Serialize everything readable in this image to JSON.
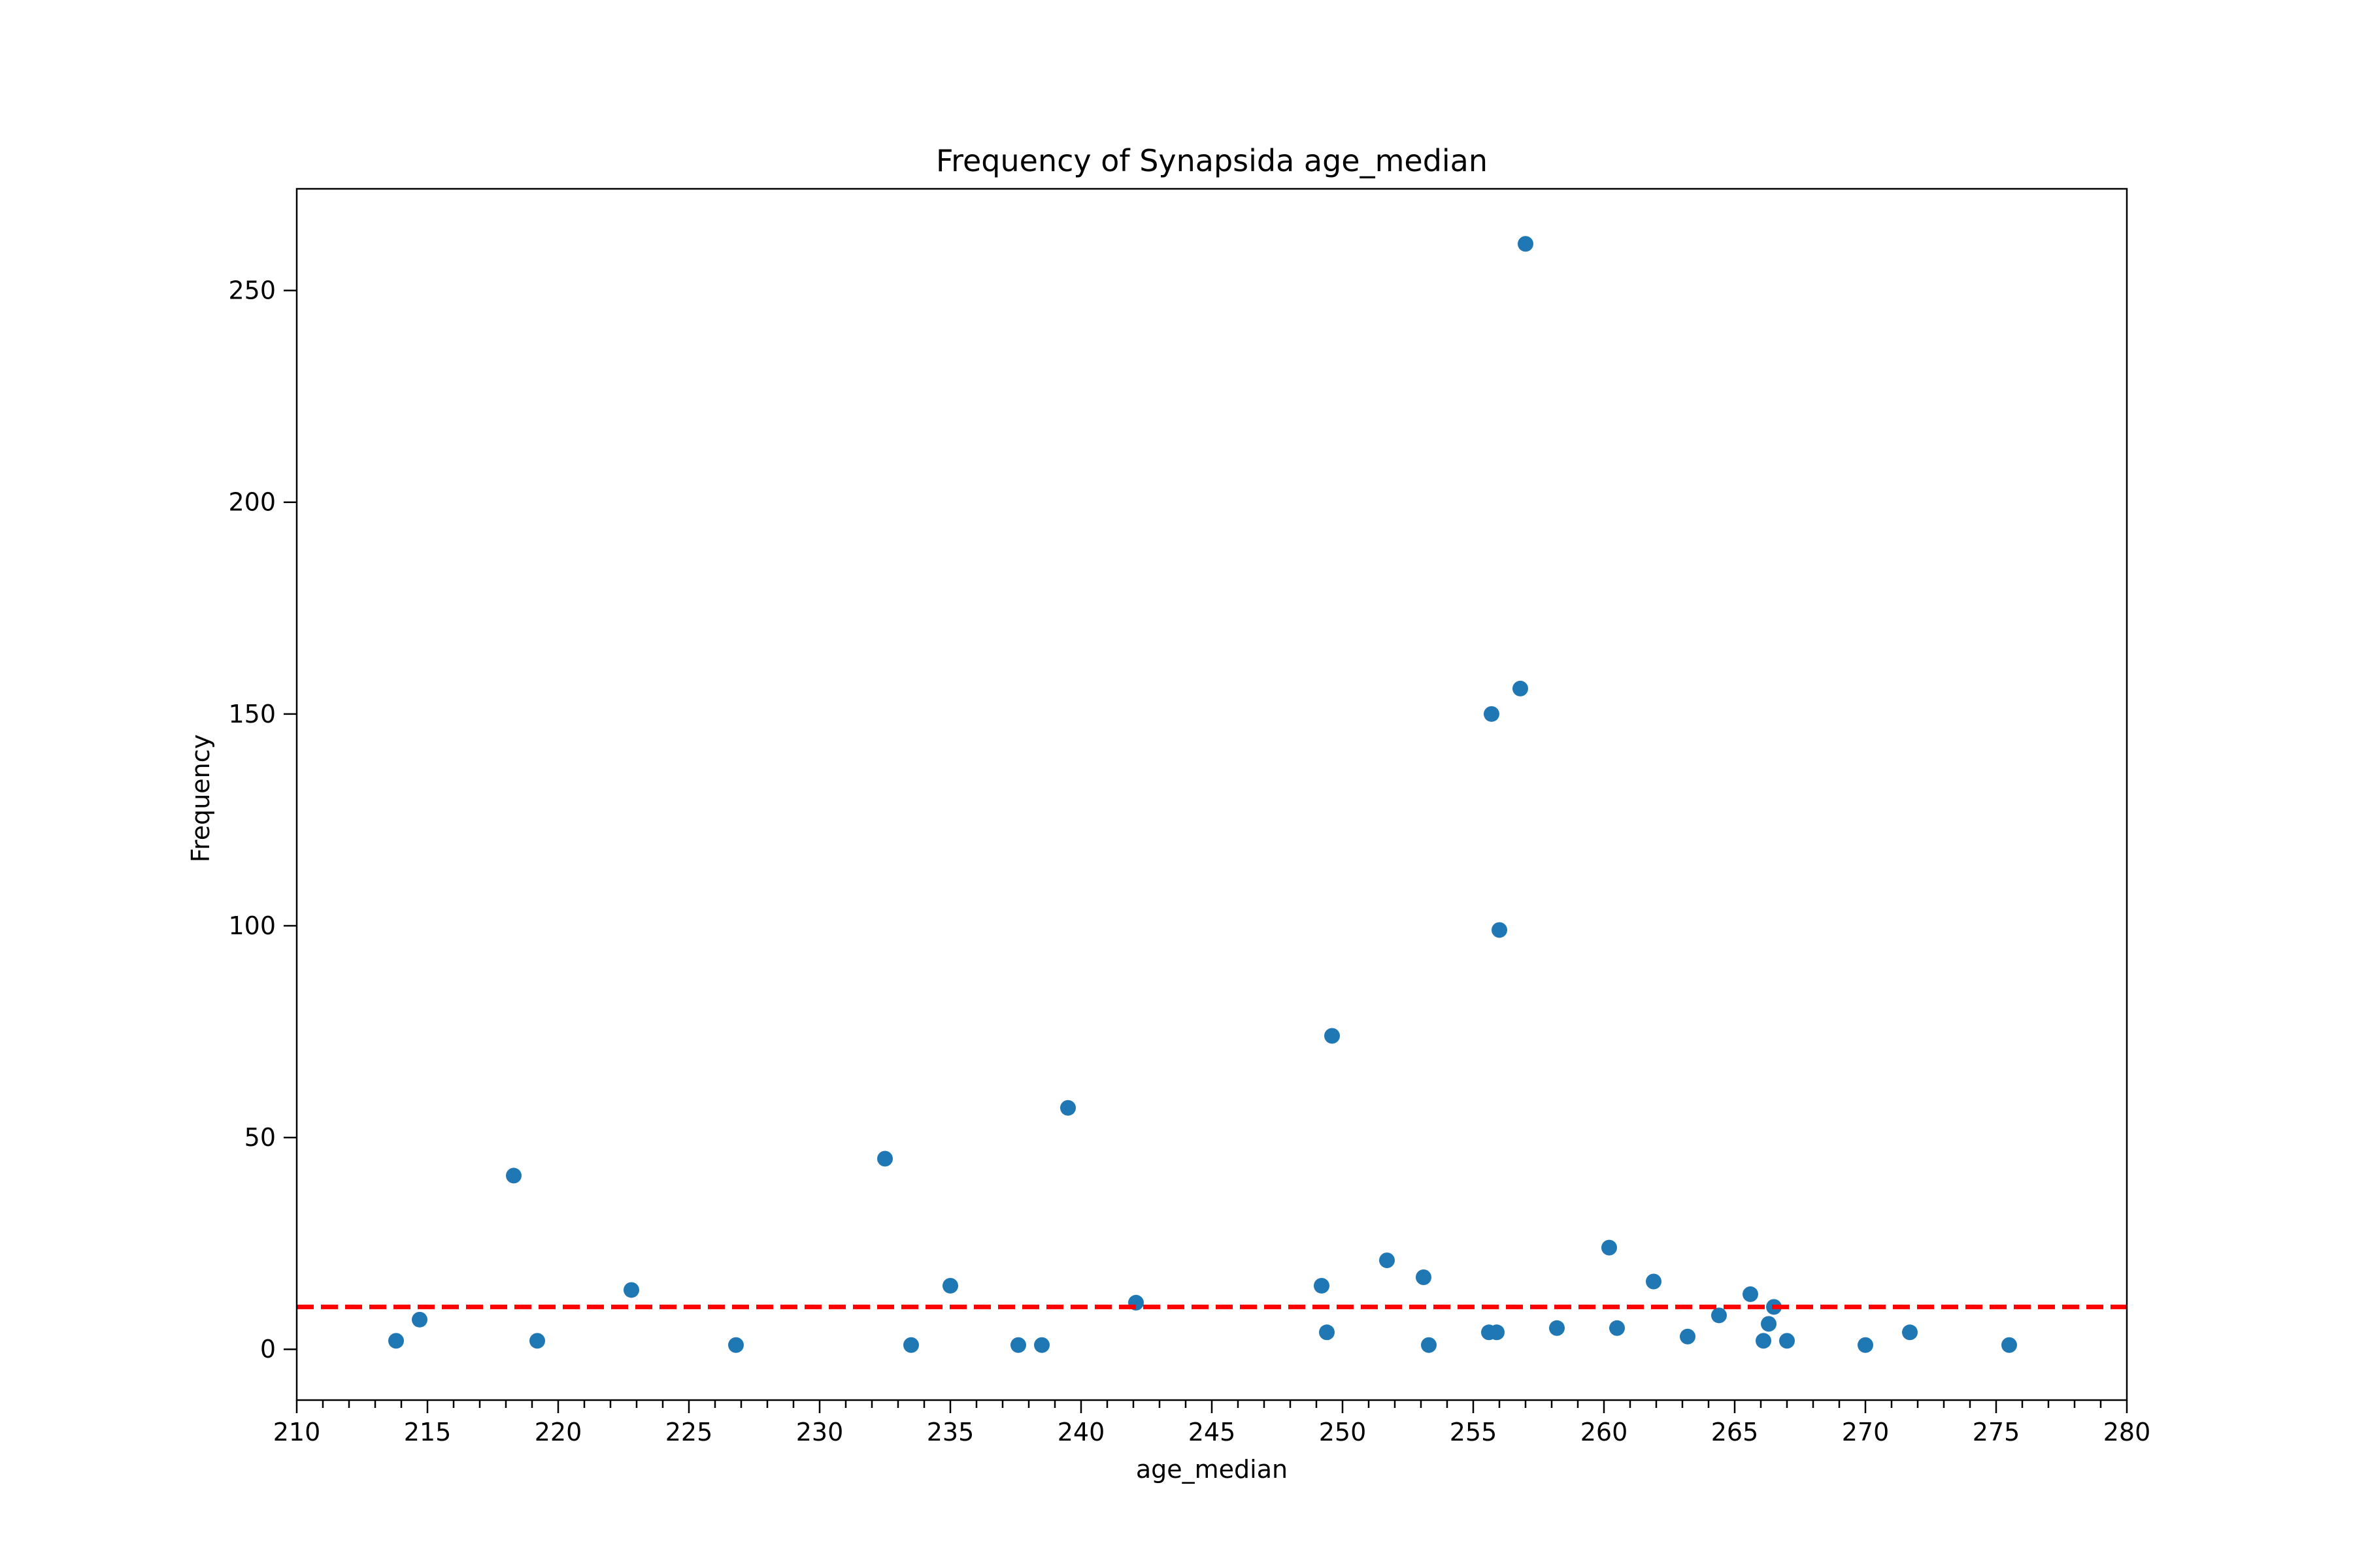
{
  "chart_data": {
    "type": "scatter",
    "title": "Frequency of Synapsida age_median",
    "xlabel": "age_median",
    "ylabel": "Frequency",
    "xlim": [
      210,
      280
    ],
    "ylim": [
      -12,
      274
    ],
    "x_major_ticks": [
      210,
      215,
      220,
      225,
      230,
      235,
      240,
      245,
      250,
      255,
      260,
      265,
      270,
      275,
      280
    ],
    "x_minor_tick_step": 1,
    "y_ticks": [
      0,
      50,
      100,
      150,
      200,
      250
    ],
    "grid": false,
    "marker_color": "#1f77b4",
    "threshold": {
      "y": 10,
      "color": "#ff0000",
      "style": "dashed"
    },
    "points": [
      [
        213.8,
        2
      ],
      [
        214.7,
        7
      ],
      [
        218.3,
        41
      ],
      [
        219.2,
        2
      ],
      [
        222.8,
        14
      ],
      [
        226.8,
        1
      ],
      [
        232.5,
        45
      ],
      [
        233.5,
        1
      ],
      [
        235.0,
        15
      ],
      [
        237.6,
        1
      ],
      [
        238.5,
        1
      ],
      [
        239.5,
        57
      ],
      [
        242.1,
        11
      ],
      [
        249.2,
        15
      ],
      [
        249.4,
        4
      ],
      [
        249.6,
        74
      ],
      [
        251.7,
        21
      ],
      [
        253.1,
        17
      ],
      [
        253.3,
        1
      ],
      [
        255.6,
        4
      ],
      [
        255.7,
        150
      ],
      [
        255.9,
        4
      ],
      [
        256.0,
        99
      ],
      [
        256.8,
        156
      ],
      [
        257.0,
        261
      ],
      [
        258.2,
        5
      ],
      [
        260.2,
        24
      ],
      [
        260.5,
        5
      ],
      [
        261.9,
        16
      ],
      [
        263.2,
        3
      ],
      [
        264.4,
        8
      ],
      [
        265.6,
        13
      ],
      [
        266.1,
        2
      ],
      [
        266.3,
        6
      ],
      [
        266.5,
        10
      ],
      [
        267.0,
        2
      ],
      [
        270.0,
        1
      ],
      [
        271.7,
        4
      ],
      [
        275.5,
        1
      ]
    ]
  }
}
